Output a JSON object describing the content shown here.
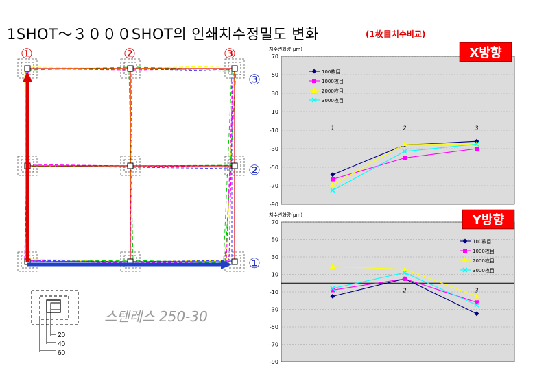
{
  "title": "1SHOT～３０００SHOT의 인쇄치수정밀도 변화",
  "subtitle": "(1枚目치수비교)",
  "material_label": "스텐레스 250-30",
  "grid": {
    "column_markers": [
      "①",
      "②",
      "③"
    ],
    "row_markers": [
      "③",
      "②",
      "①"
    ]
  },
  "corner_detail": {
    "dimensions": [
      "20",
      "40",
      "60"
    ]
  },
  "colors": {
    "series_100": "#00007f",
    "series_1000": "#ff00ff",
    "series_2000": "#ffff00",
    "series_3000": "#00ffff",
    "arrow_red": "#e00000",
    "arrow_blue": "#2040c8",
    "badge_red": "#ff0000",
    "plot_bg": "#dcdcdc"
  },
  "chart_data": [
    {
      "type": "line",
      "title": "",
      "badge": "X방향",
      "ylabel": "치수변화량(μm)",
      "xlabel": "",
      "categories": [
        "1",
        "2",
        "3"
      ],
      "ylim": [
        -90,
        70
      ],
      "yticks": [
        "70",
        "50",
        "30",
        "10",
        "-10",
        "-30",
        "-50",
        "-70",
        "-90"
      ],
      "grid": true,
      "legend_position": "left",
      "series": [
        {
          "name": "100枚目",
          "values": [
            -58,
            -26,
            -22
          ]
        },
        {
          "name": "1000枚目",
          "values": [
            -63,
            -40,
            -30
          ]
        },
        {
          "name": "2000枚目",
          "values": [
            -69,
            -25,
            -25
          ]
        },
        {
          "name": "3000枚目",
          "values": [
            -75,
            -33,
            -25
          ]
        }
      ]
    },
    {
      "type": "line",
      "title": "",
      "badge": "Y방향",
      "ylabel": "치수변화량(μm)",
      "xlabel": "",
      "categories": [
        "1",
        "2",
        "3"
      ],
      "ylim": [
        -90,
        70
      ],
      "yticks": [
        "70",
        "50",
        "30",
        "10",
        "-10",
        "-30",
        "-50",
        "-70",
        "-90"
      ],
      "grid": true,
      "legend_position": "right",
      "series": [
        {
          "name": "100枚目",
          "values": [
            -15,
            5,
            -35
          ]
        },
        {
          "name": "1000枚目",
          "values": [
            -8,
            5,
            -22
          ]
        },
        {
          "name": "2000枚目",
          "values": [
            19,
            16,
            -15
          ]
        },
        {
          "name": "3000枚目",
          "values": [
            -6,
            12,
            -25
          ]
        }
      ]
    }
  ]
}
